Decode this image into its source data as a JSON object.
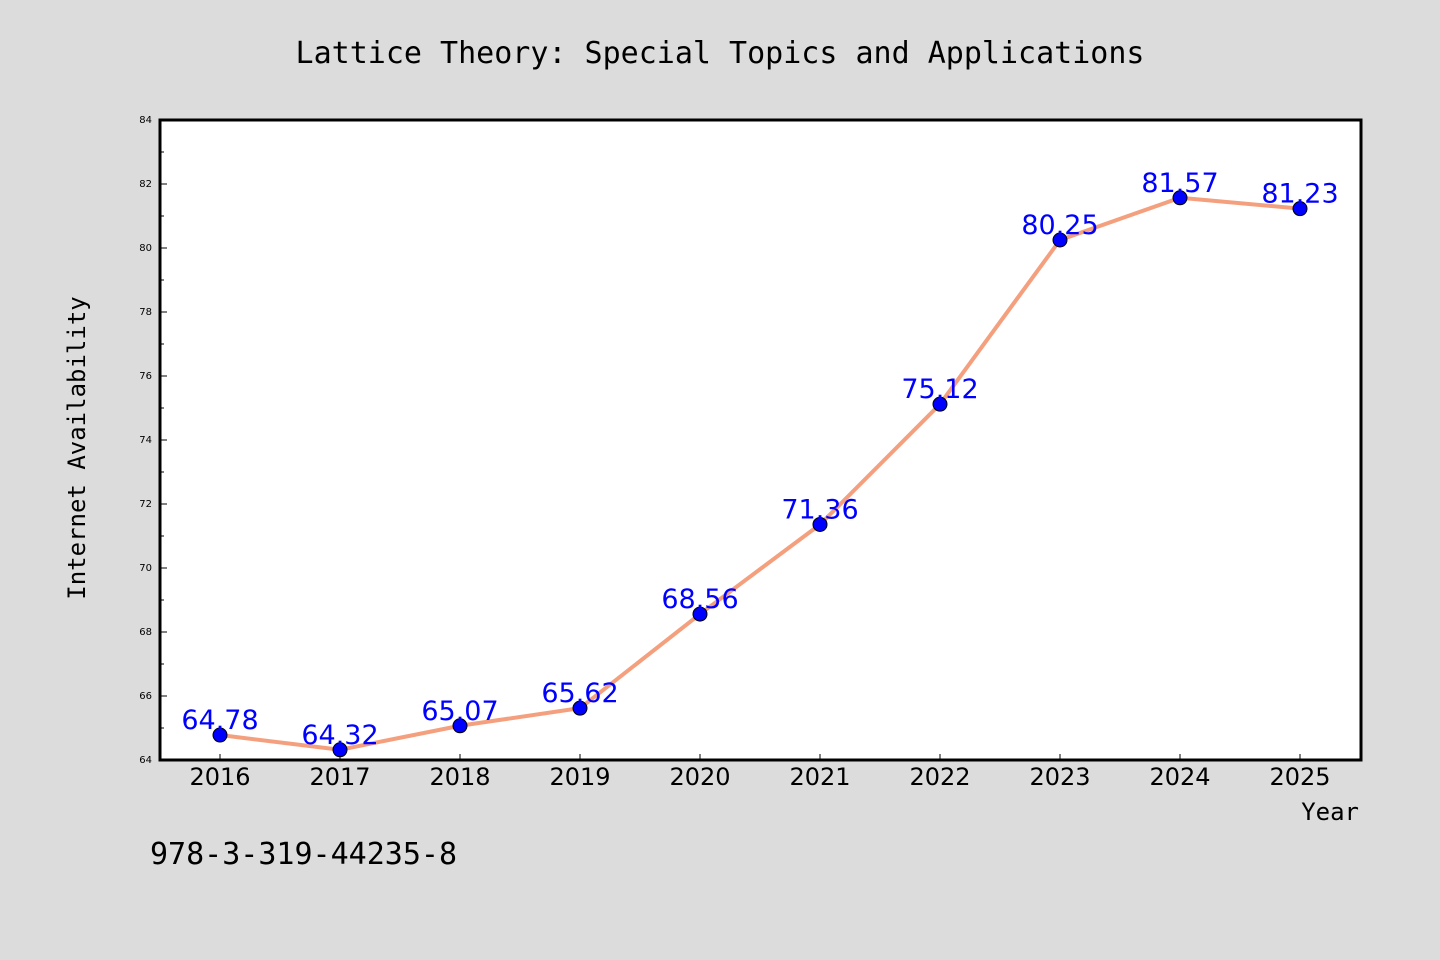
{
  "chart_data": {
    "type": "line",
    "title": "Lattice Theory: Special Topics and Applications",
    "xlabel": "Year",
    "ylabel": "Internet Availability",
    "categories": [
      "2016",
      "2017",
      "2018",
      "2019",
      "2020",
      "2021",
      "2022",
      "2023",
      "2024",
      "2025"
    ],
    "series": [
      {
        "values": [
          64.78,
          64.32,
          65.07,
          65.62,
          68.56,
          71.36,
          75.12,
          80.25,
          81.57,
          81.23
        ],
        "data_labels": [
          "64.78",
          "64.32",
          "65.07",
          "65.62",
          "68.56",
          "71.36",
          "75.12",
          "80.25",
          "81.57",
          "81.23"
        ]
      }
    ],
    "ylim": [
      64,
      84
    ],
    "yticks": [
      64,
      66,
      68,
      70,
      72,
      74,
      76,
      78,
      80,
      82,
      84
    ],
    "ytick_labels": [
      "64",
      "66",
      "68",
      "70",
      "72",
      "74",
      "76",
      "78",
      "80",
      "82",
      "84"
    ],
    "grid": false,
    "colors": {
      "line": "#f4a07e",
      "marker": "#0000ff",
      "label": "#0000ff",
      "background": "#dcdcdc",
      "plot_background": "#ffffff"
    }
  },
  "footnote": "978-3-319-44235-8"
}
